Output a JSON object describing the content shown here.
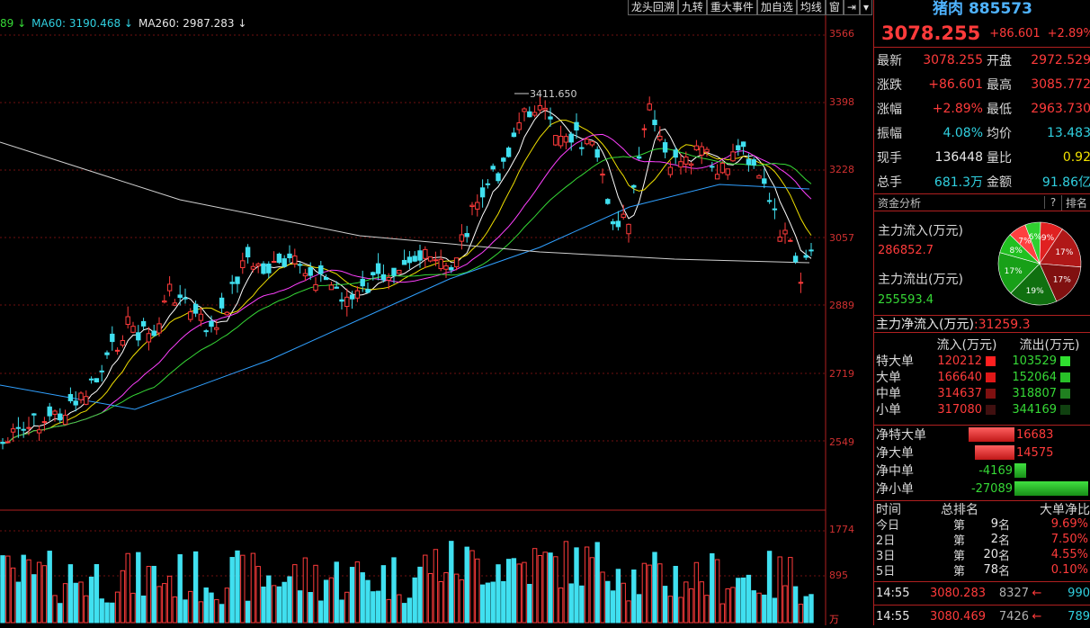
{
  "toolbar": [
    "龙头回溯",
    "九转",
    "重大事件",
    "加自选",
    "均线",
    "窗",
    "⇥",
    "▾"
  ],
  "ma_legend": [
    {
      "text": "89 ↓",
      "color": "#36d936"
    },
    {
      "text": "MA60: 3190.468 ↓",
      "color": "#30d0e0"
    },
    {
      "text": "MA260: 2987.283 ↓",
      "color": "#e8e8e8"
    }
  ],
  "price_axis": [
    "3566",
    "3398",
    "3228",
    "3057",
    "2889",
    "2719",
    "2549"
  ],
  "volume_axis": [
    "1774",
    "895",
    "万"
  ],
  "annotation_high": "3411.650",
  "header": {
    "name": "猪肉",
    "code": "885573",
    "price": "3078.255",
    "change": "+86.601",
    "pct": "+2.89%"
  },
  "quote_rows": [
    {
      "l": "最新",
      "v": "3078.255",
      "vc": "red",
      "l2": "开盘",
      "v2": "2972.529",
      "v2c": "red"
    },
    {
      "l": "涨跌",
      "v": "+86.601",
      "vc": "red",
      "l2": "最高",
      "v2": "3085.772",
      "v2c": "red"
    },
    {
      "l": "涨幅",
      "v": "+2.89%",
      "vc": "red",
      "l2": "最低",
      "v2": "2963.730",
      "v2c": "red"
    },
    {
      "l": "振幅",
      "v": "4.08%",
      "vc": "cyan",
      "l2": "均价",
      "v2": "13.483",
      "v2c": "cyan"
    },
    {
      "l": "现手",
      "v": "136448",
      "vc": "white",
      "l2": "量比",
      "v2": "0.92",
      "v2c": "yellow"
    },
    {
      "l": "总手",
      "v": "681.3万",
      "vc": "cyan",
      "l2": "金额",
      "v2": "91.86亿",
      "v2c": "cyan"
    }
  ],
  "fund": {
    "title": "资金分析",
    "help": "?",
    "rank": "排名"
  },
  "flow": {
    "in_label": "主力流入(万元)",
    "in_value": "286852.7",
    "out_label": "主力流出(万元)",
    "out_value": "255593.4",
    "net_label": "主力净流入(万元)",
    "net_value": ":31259.3"
  },
  "pie": [
    {
      "pct": 9,
      "label": "9%",
      "color": "#e02020"
    },
    {
      "pct": 17,
      "label": "17%",
      "color": "#b01818"
    },
    {
      "pct": 17,
      "label": "17%",
      "color": "#801010"
    },
    {
      "pct": 19,
      "label": "19%",
      "color": "#107010"
    },
    {
      "pct": 17,
      "label": "17%",
      "color": "#18a018"
    },
    {
      "pct": 8,
      "label": "8%",
      "color": "#20c020"
    },
    {
      "pct": 7,
      "label": "7%",
      "color": "#ff4040"
    },
    {
      "pct": 6,
      "label": "6%",
      "color": "#30d030"
    }
  ],
  "flow_table": {
    "headers": [
      "流入(万元)",
      "流出(万元)"
    ],
    "rows": [
      {
        "l": "特大单",
        "in": "120212",
        "out": "103529"
      },
      {
        "l": "大单",
        "in": "166640",
        "out": "152064"
      },
      {
        "l": "中单",
        "in": "314637",
        "out": "318807"
      },
      {
        "l": "小单",
        "in": "317080",
        "out": "344169"
      }
    ]
  },
  "net_bars": [
    {
      "l": "净特大单",
      "v": "16683",
      "n": 16683
    },
    {
      "l": "净大单",
      "v": "14575",
      "n": 14575
    },
    {
      "l": "净中单",
      "v": "-4169",
      "n": -4169
    },
    {
      "l": "净小单",
      "v": "-27089",
      "n": -27089
    }
  ],
  "rank_table": {
    "headers": [
      "时间",
      "总排名",
      "大单净比"
    ],
    "rows": [
      {
        "t": "今日",
        "a": "第",
        "n": "9",
        "u": "名",
        "p": "9.69%"
      },
      {
        "t": "2日",
        "a": "第",
        "n": "2",
        "u": "名",
        "p": "7.50%"
      },
      {
        "t": "3日",
        "a": "第",
        "n": "20",
        "u": "名",
        "p": "4.55%"
      },
      {
        "t": "5日",
        "a": "第",
        "n": "78",
        "u": "名",
        "p": "0.10%"
      }
    ]
  },
  "ticks": [
    {
      "time": "14:55",
      "price": "3080.283",
      "vol": "8327",
      "arrow": "←",
      "num": "990"
    },
    {
      "time": "14:55",
      "price": "3080.469",
      "vol": "7426",
      "arrow": "←",
      "num": "789"
    }
  ]
}
